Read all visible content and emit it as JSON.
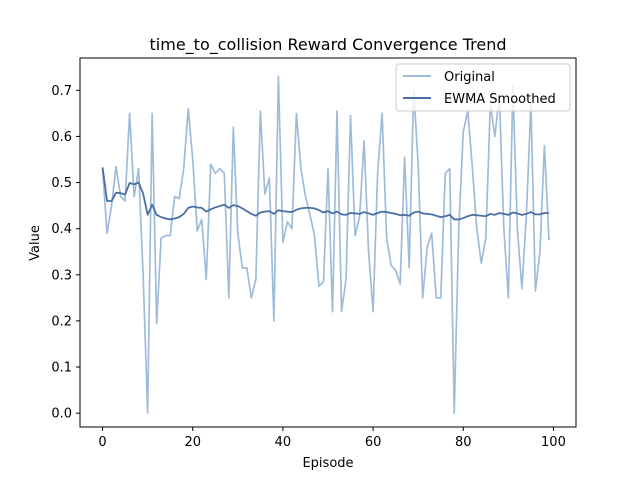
{
  "chart_data": {
    "type": "line",
    "title": "time_to_collision Reward Convergence Trend",
    "xlabel": "Episode",
    "ylabel": "Value",
    "xlim": [
      -5,
      105
    ],
    "ylim": [
      -0.03,
      0.77
    ],
    "xticks": [
      0,
      20,
      40,
      60,
      80,
      100
    ],
    "yticks": [
      0.0,
      0.1,
      0.2,
      0.3,
      0.4,
      0.5,
      0.6,
      0.7
    ],
    "grid": false,
    "legend_position": "top-right",
    "series": [
      {
        "name": "Original",
        "color": "#9ebcda",
        "x": [
          0,
          1,
          2,
          3,
          4,
          5,
          6,
          7,
          8,
          9,
          10,
          11,
          12,
          13,
          14,
          15,
          16,
          17,
          18,
          19,
          20,
          21,
          22,
          23,
          24,
          25,
          26,
          27,
          28,
          29,
          30,
          31,
          32,
          33,
          34,
          35,
          36,
          37,
          38,
          39,
          40,
          41,
          42,
          43,
          44,
          45,
          46,
          47,
          48,
          49,
          50,
          51,
          52,
          53,
          54,
          55,
          56,
          57,
          58,
          59,
          60,
          61,
          62,
          63,
          64,
          65,
          66,
          67,
          68,
          69,
          70,
          71,
          72,
          73,
          74,
          75,
          76,
          77,
          78,
          79,
          80,
          81,
          82,
          83,
          84,
          85,
          86,
          87,
          88,
          89,
          90,
          91,
          92,
          93,
          94,
          95,
          96,
          97,
          98,
          99
        ],
        "values": [
          0.53,
          0.39,
          0.45,
          0.535,
          0.47,
          0.46,
          0.65,
          0.47,
          0.53,
          0.3,
          0.0,
          0.65,
          0.195,
          0.38,
          0.385,
          0.385,
          0.47,
          0.465,
          0.53,
          0.66,
          0.55,
          0.395,
          0.42,
          0.29,
          0.54,
          0.52,
          0.53,
          0.52,
          0.25,
          0.62,
          0.39,
          0.315,
          0.315,
          0.25,
          0.29,
          0.655,
          0.475,
          0.51,
          0.2,
          0.73,
          0.37,
          0.415,
          0.4,
          0.65,
          0.53,
          0.47,
          0.43,
          0.385,
          0.275,
          0.285,
          0.53,
          0.22,
          0.655,
          0.22,
          0.29,
          0.645,
          0.385,
          0.425,
          0.59,
          0.35,
          0.22,
          0.52,
          0.65,
          0.38,
          0.32,
          0.31,
          0.28,
          0.555,
          0.315,
          0.7,
          0.54,
          0.25,
          0.36,
          0.39,
          0.25,
          0.25,
          0.52,
          0.53,
          0.0,
          0.4,
          0.61,
          0.655,
          0.535,
          0.4,
          0.325,
          0.38,
          0.67,
          0.6,
          0.69,
          0.4,
          0.25,
          0.71,
          0.4,
          0.27,
          0.43,
          0.67,
          0.265,
          0.35,
          0.58,
          0.375
        ]
      },
      {
        "name": "EWMA Smoothed",
        "color": "#4a6fa5",
        "x": [
          0,
          1,
          2,
          3,
          4,
          5,
          6,
          7,
          8,
          9,
          10,
          11,
          12,
          13,
          14,
          15,
          16,
          17,
          18,
          19,
          20,
          21,
          22,
          23,
          24,
          25,
          26,
          27,
          28,
          29,
          30,
          31,
          32,
          33,
          34,
          35,
          36,
          37,
          38,
          39,
          40,
          41,
          42,
          43,
          44,
          45,
          46,
          47,
          48,
          49,
          50,
          51,
          52,
          53,
          54,
          55,
          56,
          57,
          58,
          59,
          60,
          61,
          62,
          63,
          64,
          65,
          66,
          67,
          68,
          69,
          70,
          71,
          72,
          73,
          74,
          75,
          76,
          77,
          78,
          79,
          80,
          81,
          82,
          83,
          84,
          85,
          86,
          87,
          88,
          89,
          90,
          91,
          92,
          93,
          94,
          95,
          96,
          97,
          98,
          99
        ],
        "values": [
          0.533,
          0.46,
          0.46,
          0.478,
          0.477,
          0.474,
          0.499,
          0.496,
          0.5,
          0.476,
          0.43,
          0.452,
          0.43,
          0.425,
          0.422,
          0.42,
          0.422,
          0.425,
          0.432,
          0.445,
          0.448,
          0.446,
          0.445,
          0.437,
          0.442,
          0.446,
          0.449,
          0.452,
          0.445,
          0.451,
          0.449,
          0.444,
          0.438,
          0.432,
          0.428,
          0.435,
          0.437,
          0.438,
          0.432,
          0.44,
          0.438,
          0.437,
          0.436,
          0.441,
          0.444,
          0.445,
          0.445,
          0.444,
          0.44,
          0.435,
          0.438,
          0.433,
          0.437,
          0.431,
          0.43,
          0.434,
          0.433,
          0.432,
          0.436,
          0.433,
          0.43,
          0.434,
          0.437,
          0.436,
          0.434,
          0.432,
          0.429,
          0.43,
          0.428,
          0.435,
          0.437,
          0.433,
          0.432,
          0.431,
          0.428,
          0.425,
          0.427,
          0.43,
          0.42,
          0.42,
          0.423,
          0.427,
          0.43,
          0.429,
          0.428,
          0.427,
          0.432,
          0.43,
          0.434,
          0.432,
          0.43,
          0.435,
          0.433,
          0.43,
          0.432,
          0.436,
          0.431,
          0.431,
          0.434,
          0.434
        ]
      }
    ]
  }
}
